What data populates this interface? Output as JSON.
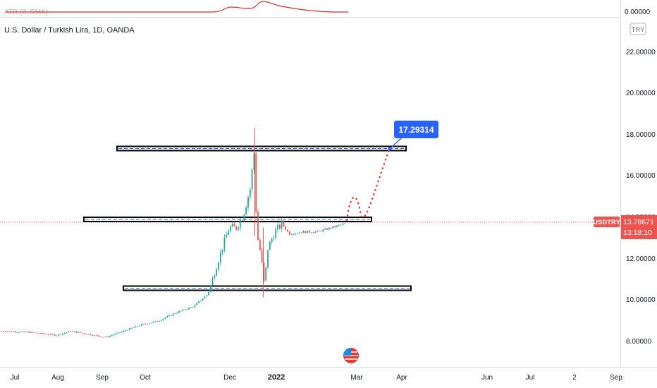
{
  "chart_data": {
    "type": "candlestick",
    "title": "U.S. Dollar / Turkish Lira, 1D, OANDA",
    "indicator_label": "ATR (8, RMA)",
    "indicator_axis_label": "0.00000",
    "currency_button": "TRY",
    "y_ticks": [
      "22.00000",
      "20.00000",
      "18.00000",
      "16.00000",
      "14.00000",
      "12.00000",
      "10.00000",
      "8.00000"
    ],
    "x_ticks": [
      "Jul",
      "Aug",
      "Sep",
      "Oct",
      "Dec",
      "2022",
      "Mar",
      "Apr",
      "Jun",
      "Jul",
      "2",
      "Sep"
    ],
    "price_tag": {
      "symbol": "USDTRY",
      "price": "13.78671",
      "countdown": "13:18:10"
    },
    "target_label": "17.29314",
    "levels": [
      17.29,
      13.85,
      10.55
    ],
    "last_price": 13.78671,
    "projection": [
      13.9,
      14.85,
      13.95,
      17.29314
    ],
    "colors": {
      "up": "#26a69a",
      "down": "#ef5350",
      "target": "#2962ff",
      "atr": "#d32f2f",
      "projection": "#e53935"
    }
  }
}
